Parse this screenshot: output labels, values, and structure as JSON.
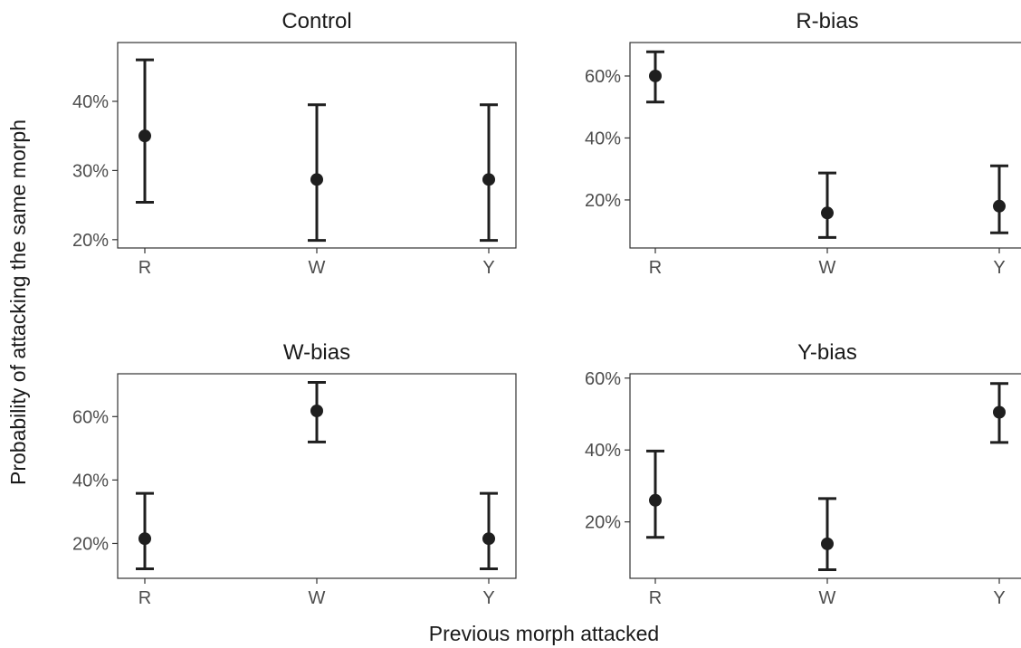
{
  "chart_data": {
    "type": "scatter",
    "xlabel": "Previous morph attacked",
    "ylabel": "Probability of attacking the same morph",
    "categories": [
      "R",
      "W",
      "Y"
    ],
    "colors": {
      "point": "#1f1f1f",
      "axis": "#333333",
      "tick_text": "#4d4d4d"
    },
    "panels": [
      {
        "title": "Control",
        "ylim": [
          0.188,
          0.485
        ],
        "yticks": [
          0.2,
          0.3,
          0.4
        ],
        "ytick_labels": [
          "20%",
          "30%",
          "40%"
        ],
        "points": [
          {
            "x": "R",
            "y": 0.35,
            "lower": 0.254,
            "upper": 0.46
          },
          {
            "x": "W",
            "y": 0.287,
            "lower": 0.199,
            "upper": 0.395
          },
          {
            "x": "Y",
            "y": 0.287,
            "lower": 0.199,
            "upper": 0.395
          }
        ]
      },
      {
        "title": "R-bias",
        "ylim": [
          0.045,
          0.708
        ],
        "yticks": [
          0.2,
          0.4,
          0.6
        ],
        "ytick_labels": [
          "20%",
          "40%",
          "60%"
        ],
        "points": [
          {
            "x": "R",
            "y": 0.6,
            "lower": 0.516,
            "upper": 0.678
          },
          {
            "x": "W",
            "y": 0.158,
            "lower": 0.079,
            "upper": 0.287
          },
          {
            "x": "Y",
            "y": 0.18,
            "lower": 0.094,
            "upper": 0.31
          }
        ]
      },
      {
        "title": "W-bias",
        "ylim": [
          0.09,
          0.735
        ],
        "yticks": [
          0.2,
          0.4,
          0.6
        ],
        "ytick_labels": [
          "20%",
          "40%",
          "60%"
        ],
        "points": [
          {
            "x": "R",
            "y": 0.215,
            "lower": 0.12,
            "upper": 0.358
          },
          {
            "x": "W",
            "y": 0.618,
            "lower": 0.52,
            "upper": 0.708
          },
          {
            "x": "Y",
            "y": 0.215,
            "lower": 0.12,
            "upper": 0.358
          }
        ]
      },
      {
        "title": "Y-bias",
        "ylim": [
          0.043,
          0.612
        ],
        "yticks": [
          0.2,
          0.4,
          0.6
        ],
        "ytick_labels": [
          "20%",
          "40%",
          "60%"
        ],
        "points": [
          {
            "x": "R",
            "y": 0.26,
            "lower": 0.157,
            "upper": 0.397
          },
          {
            "x": "W",
            "y": 0.139,
            "lower": 0.067,
            "upper": 0.265
          },
          {
            "x": "Y",
            "y": 0.505,
            "lower": 0.421,
            "upper": 0.585
          }
        ]
      }
    ]
  }
}
